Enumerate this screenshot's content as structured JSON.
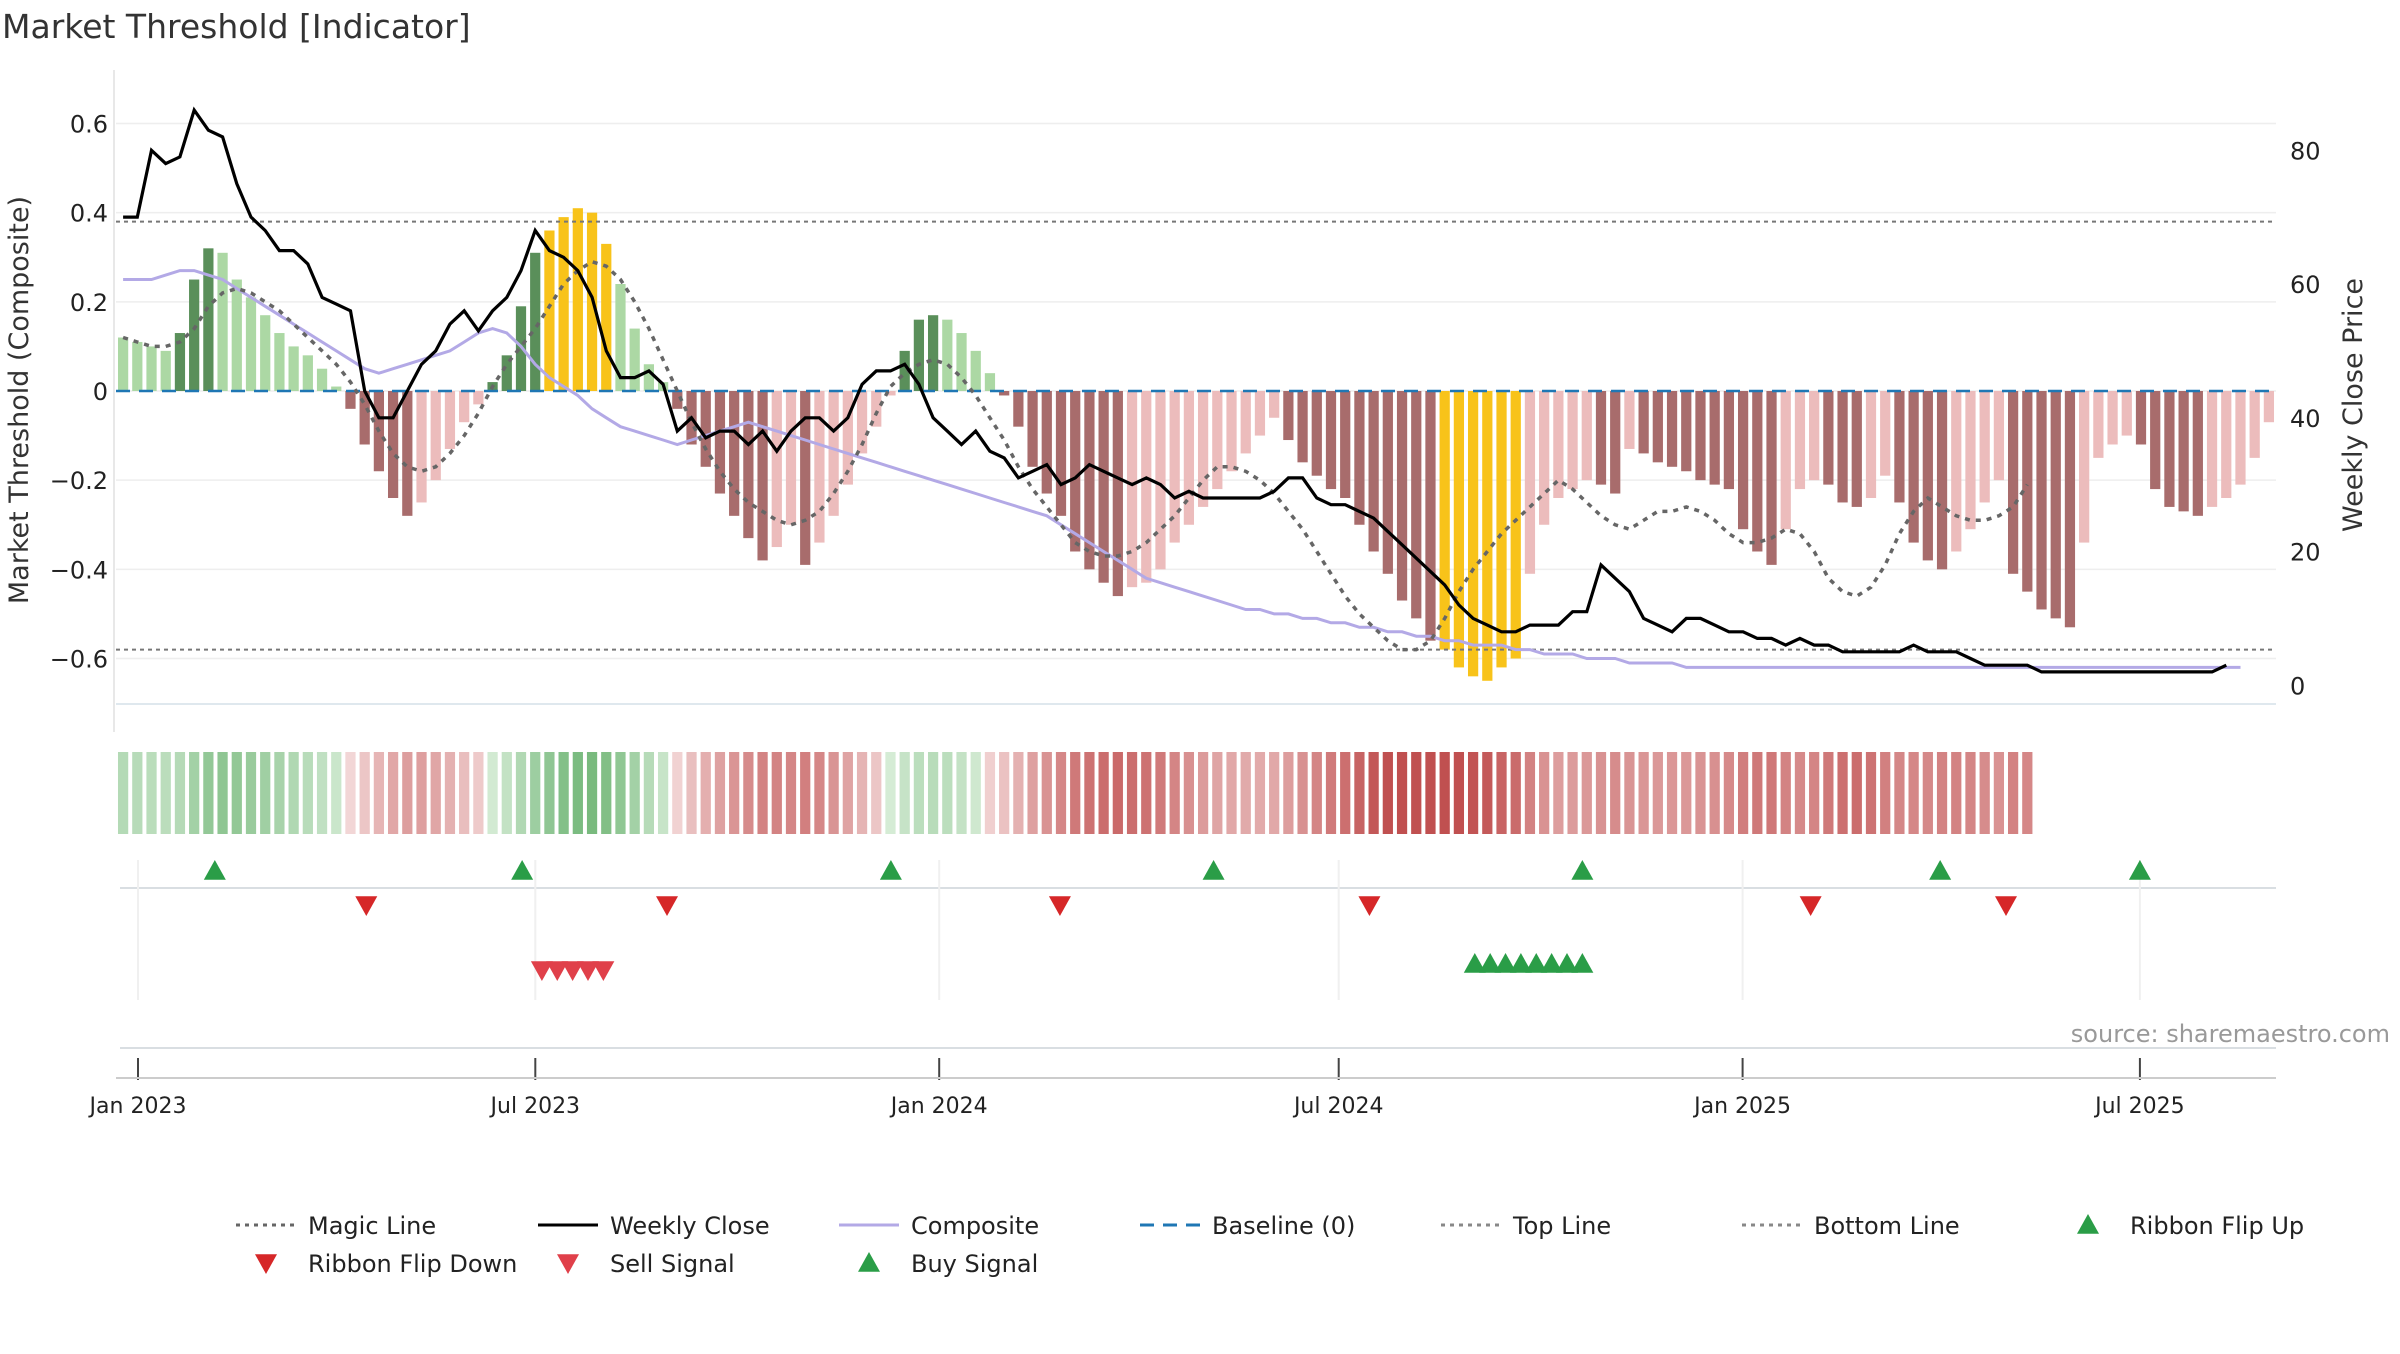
{
  "chart_data": {
    "type": "bar",
    "title": "Market Threshold [Indicator]",
    "ylabel_left": "Market Threshold (Composite)",
    "ylabel_right": "Weekly Close Price",
    "source": "source: sharemaestro.com",
    "x_start": "2023-01-01",
    "x_end": "2025-09-01",
    "x_ticks": [
      {
        "date": "2023-01-01",
        "label": "Jan 2023"
      },
      {
        "date": "2023-07-01",
        "label": "Jul 2023"
      },
      {
        "date": "2024-01-01",
        "label": "Jan 2024"
      },
      {
        "date": "2024-07-01",
        "label": "Jul 2024"
      },
      {
        "date": "2025-01-01",
        "label": "Jan 2025"
      },
      {
        "date": "2025-07-01",
        "label": "Jul 2025"
      }
    ],
    "ylim_left": [
      -0.72,
      0.72
    ],
    "yticks_left": [
      {
        "v": 0.6,
        "label": "0.6"
      },
      {
        "v": 0.4,
        "label": "0.4"
      },
      {
        "v": 0.2,
        "label": "0.2"
      },
      {
        "v": 0,
        "label": "0"
      },
      {
        "v": -0.2,
        "label": "−0.2"
      },
      {
        "v": -0.4,
        "label": "−0.4"
      },
      {
        "v": -0.6,
        "label": "−0.6"
      }
    ],
    "ylim_right": [
      -4,
      92
    ],
    "yticks_right": [
      {
        "v": 80,
        "label": "80"
      },
      {
        "v": 60,
        "label": "60"
      },
      {
        "v": 40,
        "label": "40"
      },
      {
        "v": 20,
        "label": "20"
      },
      {
        "v": 0,
        "label": "0"
      }
    ],
    "top_line": 0.38,
    "bottom_line": -0.58,
    "baseline": 0,
    "composite_bars": [
      0.12,
      0.11,
      0.1,
      0.09,
      0.13,
      0.25,
      0.32,
      0.31,
      0.25,
      0.21,
      0.17,
      0.13,
      0.1,
      0.08,
      0.05,
      0.01,
      -0.04,
      -0.12,
      -0.18,
      -0.24,
      -0.28,
      -0.25,
      -0.2,
      -0.13,
      -0.07,
      -0.03,
      0.02,
      0.08,
      0.19,
      0.31,
      0.36,
      0.39,
      0.41,
      0.4,
      0.33,
      0.24,
      0.14,
      0.06,
      0.02,
      -0.04,
      -0.12,
      -0.17,
      -0.23,
      -0.28,
      -0.33,
      -0.38,
      -0.35,
      -0.3,
      -0.39,
      -0.34,
      -0.28,
      -0.21,
      -0.14,
      -0.08,
      -0.01,
      0.09,
      0.16,
      0.17,
      0.16,
      0.13,
      0.09,
      0.04,
      -0.01,
      -0.08,
      -0.17,
      -0.23,
      -0.28,
      -0.36,
      -0.4,
      -0.43,
      -0.46,
      -0.44,
      -0.43,
      -0.4,
      -0.34,
      -0.3,
      -0.26,
      -0.22,
      -0.18,
      -0.14,
      -0.1,
      -0.06,
      -0.11,
      -0.16,
      -0.19,
      -0.22,
      -0.24,
      -0.3,
      -0.36,
      -0.41,
      -0.47,
      -0.51,
      -0.56,
      -0.58,
      -0.62,
      -0.64,
      -0.65,
      -0.62,
      -0.6,
      -0.41,
      -0.3,
      -0.24,
      -0.22,
      -0.2,
      -0.21,
      -0.23,
      -0.13,
      -0.14,
      -0.16,
      -0.17,
      -0.18,
      -0.2,
      -0.21,
      -0.22,
      -0.31,
      -0.36,
      -0.39,
      -0.31,
      -0.22,
      -0.2,
      -0.21,
      -0.25,
      -0.26,
      -0.24,
      -0.19,
      -0.25,
      -0.34,
      -0.38,
      -0.4,
      -0.36,
      -0.31,
      -0.25,
      -0.2,
      -0.41,
      -0.45,
      -0.49,
      -0.51,
      -0.53,
      -0.34,
      -0.15,
      -0.12,
      -0.1,
      -0.12,
      -0.22,
      -0.26,
      -0.27,
      -0.28,
      -0.26,
      -0.24,
      -0.21,
      -0.15,
      -0.07
    ],
    "weekly_close": [
      70,
      70,
      80,
      78,
      79,
      86,
      83,
      82,
      75,
      70,
      68,
      65,
      65,
      63,
      58,
      57,
      56,
      44,
      40,
      40,
      44,
      48,
      50,
      54,
      56,
      53,
      56,
      58,
      62,
      68,
      65,
      64,
      62,
      58,
      50,
      46,
      46,
      47,
      45,
      38,
      40,
      37,
      38,
      38,
      36,
      38,
      35,
      38,
      40,
      40,
      38,
      40,
      45,
      47,
      47,
      48,
      45,
      40,
      38,
      36,
      38,
      35,
      34,
      31,
      32,
      33,
      30,
      31,
      33,
      32,
      31,
      30,
      31,
      30,
      28,
      29,
      28,
      28,
      28,
      28,
      28,
      29,
      31,
      31,
      28,
      27,
      27,
      26,
      25,
      23,
      21,
      19,
      17,
      15,
      12,
      10,
      9,
      8,
      8,
      9,
      9,
      9,
      11,
      11,
      18,
      16,
      14,
      10,
      9,
      8,
      10,
      10,
      9,
      8,
      8,
      7,
      7,
      6,
      7,
      6,
      6,
      5,
      5,
      5,
      5,
      5,
      6,
      5,
      5,
      5,
      4,
      3,
      3,
      3,
      3,
      2,
      2,
      2,
      2,
      2,
      2,
      2,
      2,
      2,
      2,
      2,
      2,
      2,
      3
    ],
    "composite_line": [
      0.25,
      0.25,
      0.25,
      0.26,
      0.27,
      0.27,
      0.26,
      0.25,
      0.23,
      0.21,
      0.19,
      0.17,
      0.15,
      0.13,
      0.11,
      0.09,
      0.07,
      0.05,
      0.04,
      0.05,
      0.06,
      0.07,
      0.08,
      0.09,
      0.11,
      0.13,
      0.14,
      0.13,
      0.1,
      0.06,
      0.03,
      0.01,
      -0.01,
      -0.04,
      -0.06,
      -0.08,
      -0.09,
      -0.1,
      -0.11,
      -0.12,
      -0.11,
      -0.1,
      -0.09,
      -0.08,
      -0.07,
      -0.08,
      -0.09,
      -0.1,
      -0.11,
      -0.12,
      -0.13,
      -0.14,
      -0.15,
      -0.16,
      -0.17,
      -0.18,
      -0.19,
      -0.2,
      -0.21,
      -0.22,
      -0.23,
      -0.24,
      -0.25,
      -0.26,
      -0.27,
      -0.28,
      -0.3,
      -0.32,
      -0.34,
      -0.36,
      -0.38,
      -0.4,
      -0.42,
      -0.43,
      -0.44,
      -0.45,
      -0.46,
      -0.47,
      -0.48,
      -0.49,
      -0.49,
      -0.5,
      -0.5,
      -0.51,
      -0.51,
      -0.52,
      -0.52,
      -0.53,
      -0.53,
      -0.54,
      -0.54,
      -0.55,
      -0.55,
      -0.56,
      -0.56,
      -0.57,
      -0.57,
      -0.57,
      -0.58,
      -0.58,
      -0.59,
      -0.59,
      -0.59,
      -0.6,
      -0.6,
      -0.6,
      -0.61,
      -0.61,
      -0.61,
      -0.61,
      -0.62,
      -0.62,
      -0.62,
      -0.62,
      -0.62,
      -0.62,
      -0.62,
      -0.62,
      -0.62,
      -0.62,
      -0.62,
      -0.62,
      -0.62,
      -0.62,
      -0.62,
      -0.62,
      -0.62,
      -0.62,
      -0.62,
      -0.62,
      -0.62,
      -0.62,
      -0.62,
      -0.62,
      -0.62,
      -0.62,
      -0.62,
      -0.62,
      -0.62,
      -0.62,
      -0.62,
      -0.62,
      -0.62,
      -0.62,
      -0.62,
      -0.62,
      -0.62,
      -0.62,
      -0.62,
      -0.62
    ],
    "magic_line": [
      0.12,
      0.11,
      0.1,
      0.1,
      0.11,
      0.14,
      0.19,
      0.22,
      0.23,
      0.22,
      0.2,
      0.18,
      0.15,
      0.12,
      0.09,
      0.06,
      0.02,
      -0.03,
      -0.09,
      -0.14,
      -0.17,
      -0.18,
      -0.17,
      -0.14,
      -0.1,
      -0.05,
      0.01,
      0.06,
      0.1,
      0.14,
      0.19,
      0.24,
      0.27,
      0.29,
      0.28,
      0.25,
      0.2,
      0.14,
      0.07,
      0.0,
      -0.07,
      -0.13,
      -0.18,
      -0.22,
      -0.25,
      -0.27,
      -0.29,
      -0.3,
      -0.29,
      -0.27,
      -0.23,
      -0.18,
      -0.12,
      -0.05,
      0.01,
      0.04,
      0.06,
      0.07,
      0.06,
      0.03,
      -0.01,
      -0.06,
      -0.11,
      -0.17,
      -0.22,
      -0.26,
      -0.3,
      -0.34,
      -0.36,
      -0.37,
      -0.37,
      -0.36,
      -0.34,
      -0.31,
      -0.28,
      -0.24,
      -0.2,
      -0.17,
      -0.17,
      -0.18,
      -0.2,
      -0.23,
      -0.27,
      -0.31,
      -0.36,
      -0.41,
      -0.46,
      -0.5,
      -0.53,
      -0.56,
      -0.58,
      -0.58,
      -0.56,
      -0.51,
      -0.45,
      -0.4,
      -0.36,
      -0.32,
      -0.29,
      -0.26,
      -0.23,
      -0.2,
      -0.22,
      -0.25,
      -0.28,
      -0.3,
      -0.31,
      -0.29,
      -0.27,
      -0.27,
      -0.26,
      -0.27,
      -0.29,
      -0.32,
      -0.34,
      -0.34,
      -0.33,
      -0.31,
      -0.32,
      -0.36,
      -0.42,
      -0.45,
      -0.46,
      -0.44,
      -0.39,
      -0.32,
      -0.27,
      -0.24,
      -0.26,
      -0.28,
      -0.29,
      -0.29,
      -0.28,
      -0.26,
      -0.21
    ],
    "highlight_ranges": [
      [
        30,
        34
      ],
      [
        93,
        98
      ]
    ],
    "ribbon_flip_up": [
      "2023-02-05",
      "2023-06-25",
      "2023-12-10",
      "2024-05-05",
      "2024-10-20",
      "2025-04-01",
      "2025-07-01"
    ],
    "ribbon_flip_down": [
      "2023-04-15",
      "2023-08-30",
      "2024-02-25",
      "2024-07-15",
      "2025-02-01",
      "2025-05-01"
    ],
    "sell_signals": [
      "2023-07-04",
      "2023-07-11",
      "2023-07-18",
      "2023-07-25",
      "2023-08-01"
    ],
    "buy_signals": [
      "2024-09-01",
      "2024-09-08",
      "2024-09-15",
      "2024-09-22",
      "2024-09-29",
      "2024-10-06",
      "2024-10-13",
      "2024-10-20"
    ],
    "legend": [
      {
        "label": "Magic Line",
        "kind": "dotted",
        "color": "#666666"
      },
      {
        "label": "Weekly Close",
        "kind": "solid",
        "color": "#000000"
      },
      {
        "label": "Composite",
        "kind": "solid",
        "color": "#b3a9e6"
      },
      {
        "label": "Baseline (0)",
        "kind": "dashed",
        "color": "#1f77b4"
      },
      {
        "label": "Top Line",
        "kind": "dotted",
        "color": "#888888"
      },
      {
        "label": "Bottom Line",
        "kind": "dotted",
        "color": "#888888"
      },
      {
        "label": "Ribbon Flip Up",
        "kind": "tri-up",
        "color": "#2a9d47"
      },
      {
        "label": "Ribbon Flip Down",
        "kind": "tri-down",
        "color": "#d62728"
      },
      {
        "label": "Sell Signal",
        "kind": "tri-down",
        "color": "#e0404a"
      },
      {
        "label": "Buy Signal",
        "kind": "tri-up",
        "color": "#2a9d47"
      }
    ]
  },
  "colors": {
    "pos_strong": "#5a8f5a",
    "pos_light": "#acd8a4",
    "neg_strong": "#a86c6c",
    "neg_light": "#ecbcbc",
    "highlight": "#f8c31a"
  }
}
